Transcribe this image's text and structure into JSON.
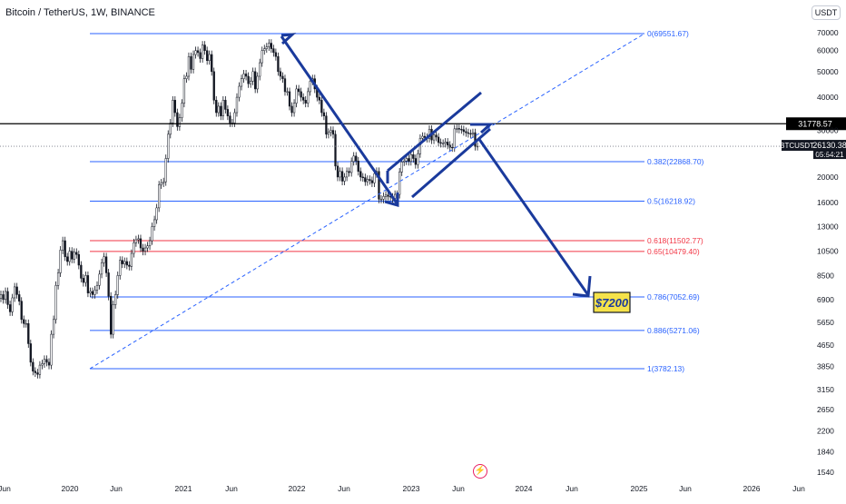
{
  "header": {
    "title": "Bitcoin / TetherUS, 1W, BINANCE",
    "currency_button": "USDT",
    "lightning_icon": "lightning-icon"
  },
  "chart_data": {
    "type": "candlestick",
    "symbol": "BTCUSDT",
    "y_scale": "log",
    "price_axis_ticks": [
      70000,
      60000,
      50000,
      40000,
      30000,
      25000,
      20000,
      16000,
      13000,
      10500,
      8500,
      6900,
      5650,
      4650,
      3850,
      3150,
      2650,
      2200,
      1840,
      1540
    ],
    "time_axis_ticks": [
      "Jun",
      "2020",
      "Jun",
      "2021",
      "Jun",
      "2022",
      "Jun",
      "2023",
      "Jun",
      "2024",
      "Jun",
      "2025",
      "Jun",
      "2026",
      "Jun"
    ],
    "fib_levels": [
      {
        "label": "0(69551.67)",
        "price": 69551.67,
        "color": "#2962ff"
      },
      {
        "label": "0.382(22868.70)",
        "price": 22868.7,
        "color": "#2962ff"
      },
      {
        "label": "0.5(16218.92)",
        "price": 16218.92,
        "color": "#2962ff"
      },
      {
        "label": "0.618(11502.77)",
        "price": 11502.77,
        "color": "#f23645"
      },
      {
        "label": "0.65(10479.40)",
        "price": 10479.4,
        "color": "#f23645"
      },
      {
        "label": "0.786(7052.69)",
        "price": 7052.69,
        "color": "#2962ff"
      },
      {
        "label": "0.886(5271.06)",
        "price": 5271.06,
        "color": "#2962ff"
      },
      {
        "label": "1(3782.13)",
        "price": 3782.13,
        "color": "#2962ff"
      }
    ],
    "horizontal_line": {
      "price": 31778.57,
      "label": "31778.57"
    },
    "current_price": {
      "symbol": "BTCUSDT",
      "price": "26130.38",
      "countdown": "05:54:21"
    },
    "target_annotation": "$7200",
    "closes": [
      7200,
      6900,
      7400,
      6600,
      6200,
      7000,
      7700,
      7200,
      6800,
      5800,
      5600,
      5600,
      4700,
      4000,
      3700,
      3650,
      3600,
      3900,
      3950,
      4100,
      4000,
      3900,
      5100,
      5800,
      7800,
      8700,
      10600,
      11500,
      10000,
      9600,
      10500,
      9800,
      10400,
      10200,
      9300,
      8300,
      8000,
      8500,
      7300,
      7400,
      7200,
      7500,
      7800,
      8600,
      9500,
      10000,
      8700,
      7100,
      5100,
      6600,
      7200,
      8500,
      9700,
      9400,
      9600,
      9300,
      9200,
      10300,
      11300,
      11600,
      11700,
      10800,
      10500,
      10800,
      11000,
      11500,
      13000,
      13800,
      15300,
      18700,
      19000,
      19200,
      23500,
      29000,
      32000,
      39000,
      35000,
      31000,
      33500,
      38000,
      47000,
      48000,
      57000,
      51000,
      58000,
      60000,
      59000,
      56000,
      63000,
      60000,
      55000,
      58000,
      50000,
      39000,
      35000,
      37000,
      34000,
      39000,
      36000,
      34000,
      32000,
      32000,
      35000,
      40000,
      44000,
      47000,
      49000,
      48000,
      45000,
      46000,
      50000,
      43000,
      48000,
      54000,
      60000,
      61000,
      62000,
      64000,
      61000,
      59000,
      57000,
      50000,
      48000,
      47000,
      42000,
      42000,
      37000,
      35000,
      38000,
      43000,
      42000,
      40000,
      39000,
      38000,
      42000,
      46000,
      47000,
      43000,
      40000,
      39000,
      35000,
      34000,
      29000,
      29500,
      30000,
      29000,
      22000,
      20000,
      21000,
      19300,
      20000,
      21000,
      20800,
      22900,
      24000,
      23000,
      21000,
      20000,
      19900,
      19200,
      19600,
      19400,
      19000,
      20600,
      21000,
      16500,
      16500,
      16900,
      17100,
      16900,
      16800,
      16600,
      17200,
      17200,
      20900,
      22800,
      23000,
      23500,
      22900,
      24300,
      23500,
      22300,
      24500,
      28000,
      28500,
      28200,
      28000,
      30300,
      27600,
      28800,
      28300,
      27000,
      26800,
      26800,
      27100,
      26400,
      25900,
      25800,
      30400,
      30500,
      30300,
      30200,
      29700,
      29400,
      29200,
      29100,
      29400,
      26100,
      26130
    ]
  }
}
